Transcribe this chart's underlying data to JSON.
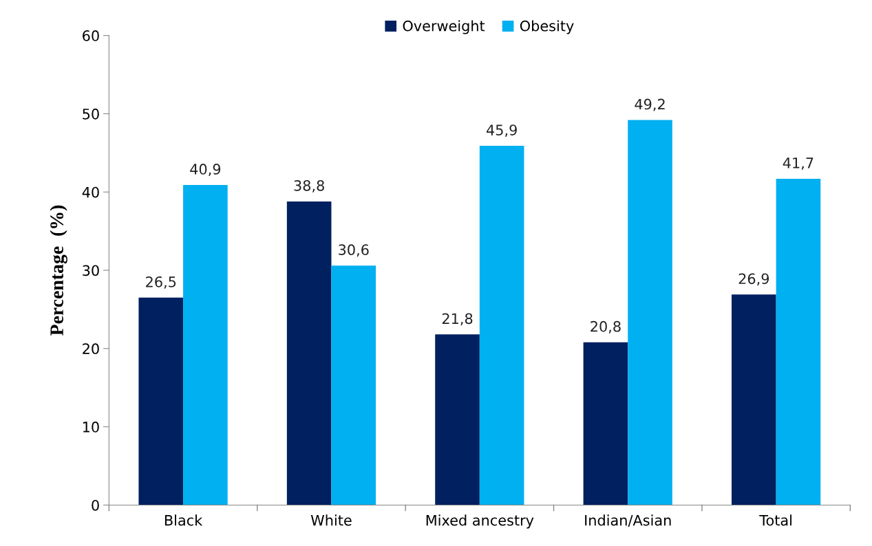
{
  "chart_data": {
    "type": "bar",
    "ylabel": "Percentage  (%)",
    "categories": [
      "Black",
      "White",
      "Mixed ancestry",
      "Indian/Asian",
      "Total"
    ],
    "series": [
      {
        "name": "Overweight",
        "color": "#002060",
        "values": [
          26.5,
          38.8,
          21.8,
          20.8,
          26.9
        ],
        "value_labels": [
          "26,5",
          "38,8",
          "21,8",
          "20,8",
          "26,9"
        ]
      },
      {
        "name": "Obesity",
        "color": "#00b0f0",
        "values": [
          40.9,
          30.6,
          45.9,
          49.2,
          41.7
        ],
        "value_labels": [
          "40,9",
          "30,6",
          "45,9",
          "49,2",
          "41,7"
        ]
      }
    ],
    "ylim": [
      0,
      60
    ],
    "yticks": [
      0,
      10,
      20,
      30,
      40,
      50,
      60
    ],
    "grid": false,
    "legend": "top"
  }
}
